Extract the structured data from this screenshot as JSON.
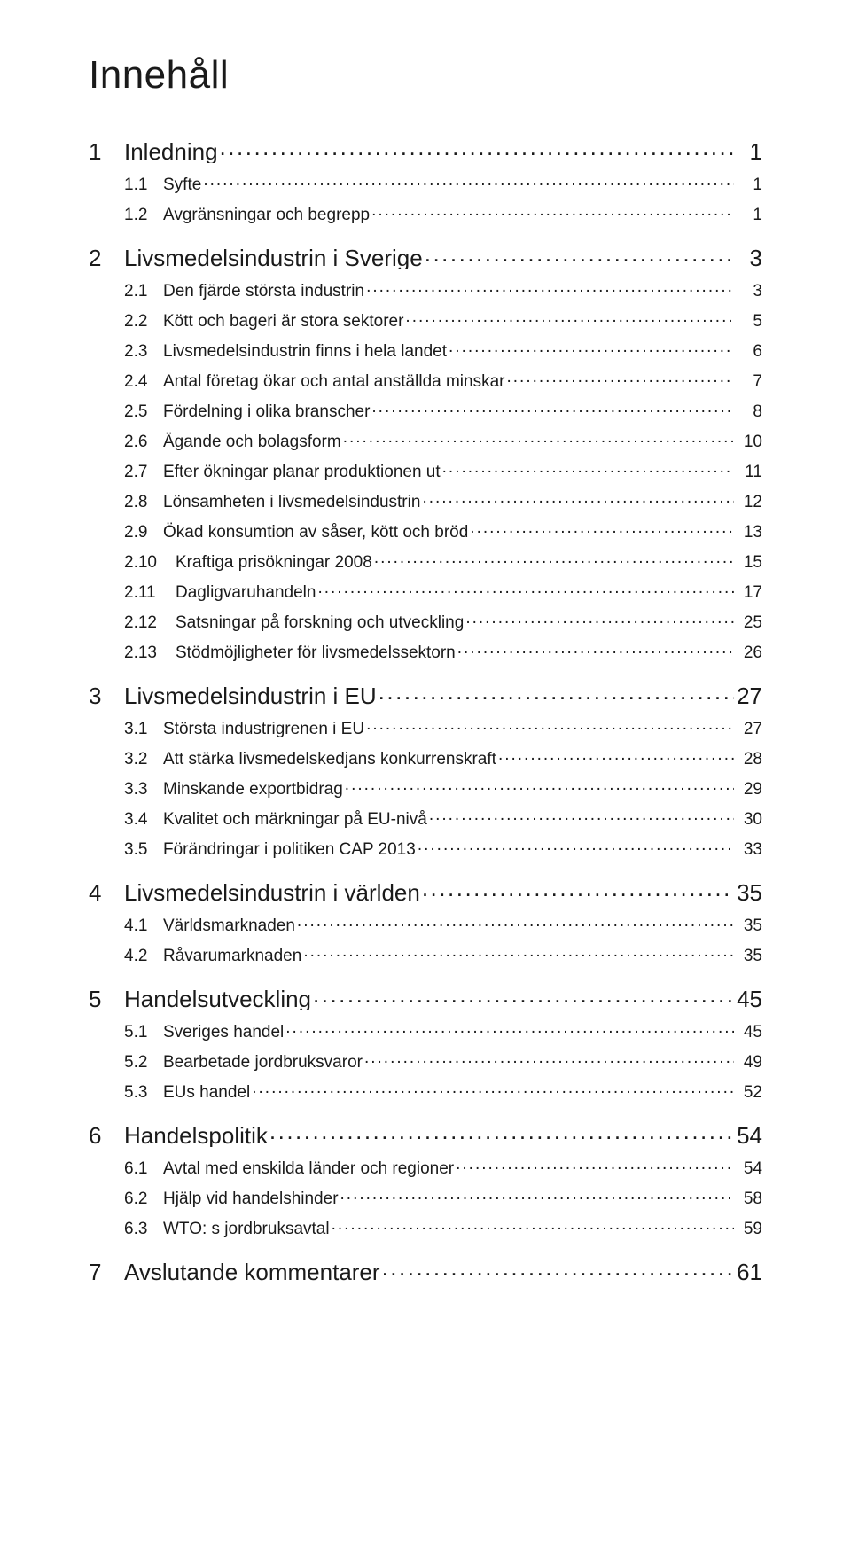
{
  "title": "Innehåll",
  "text_color": "#1a1a1a",
  "background_color": "#ffffff",
  "title_fontsize": 44,
  "lvl1_fontsize": 26,
  "lvl2_fontsize": 19,
  "toc": [
    {
      "level": 1,
      "num": "1",
      "label": "Inledning",
      "page": "1"
    },
    {
      "level": 2,
      "num": "1.1",
      "label": "Syfte",
      "page": "1"
    },
    {
      "level": 2,
      "num": "1.2",
      "label": "Avgränsningar och begrepp",
      "page": "1"
    },
    {
      "level": 1,
      "num": "2",
      "label": "Livsmedelsindustrin i Sverige",
      "page": "3"
    },
    {
      "level": 2,
      "num": "2.1",
      "label": "Den fjärde största industrin",
      "page": "3"
    },
    {
      "level": 2,
      "num": "2.2",
      "label": "Kött och bageri är stora sektorer",
      "page": "5"
    },
    {
      "level": 2,
      "num": "2.3",
      "label": "Livsmedelsindustrin finns i hela landet",
      "page": "6"
    },
    {
      "level": 2,
      "num": "2.4",
      "label": "Antal företag ökar och antal anställda minskar",
      "page": "7"
    },
    {
      "level": 2,
      "num": "2.5",
      "label": "Fördelning i olika branscher",
      "page": "8"
    },
    {
      "level": 2,
      "num": "2.6",
      "label": "Ägande och bolagsform",
      "page": "10"
    },
    {
      "level": 2,
      "num": "2.7",
      "label": "Efter ökningar planar produktionen ut",
      "page": "11"
    },
    {
      "level": 2,
      "num": "2.8",
      "label": "Lönsamheten i livsmedelsindustrin",
      "page": "12"
    },
    {
      "level": 2,
      "num": "2.9",
      "label": "Ökad konsumtion av såser, kött och bröd",
      "page": "13"
    },
    {
      "level": 2,
      "num": "2.10",
      "label": "Kraftiga prisökningar 2008",
      "page": "15",
      "wide": true
    },
    {
      "level": 2,
      "num": "2.11",
      "label": "Dagligvaruhandeln",
      "page": "17",
      "wide": true
    },
    {
      "level": 2,
      "num": "2.12",
      "label": "Satsningar på forskning och utveckling",
      "page": "25",
      "wide": true
    },
    {
      "level": 2,
      "num": "2.13",
      "label": "Stödmöjligheter för livsmedelssektorn",
      "page": "26",
      "wide": true
    },
    {
      "level": 1,
      "num": "3",
      "label": "Livsmedelsindustrin i EU",
      "page": "27"
    },
    {
      "level": 2,
      "num": "3.1",
      "label": "Största industrigrenen i EU",
      "page": "27"
    },
    {
      "level": 2,
      "num": "3.2",
      "label": "Att stärka livsmedelskedjans konkurrenskraft",
      "page": "28"
    },
    {
      "level": 2,
      "num": "3.3",
      "label": "Minskande exportbidrag",
      "page": "29"
    },
    {
      "level": 2,
      "num": "3.4",
      "label": "Kvalitet och märkningar på EU-nivå",
      "page": "30"
    },
    {
      "level": 2,
      "num": "3.5",
      "label": "Förändringar i politiken CAP 2013",
      "page": "33"
    },
    {
      "level": 1,
      "num": "4",
      "label": "Livsmedelsindustrin i världen",
      "page": "35"
    },
    {
      "level": 2,
      "num": "4.1",
      "label": "Världsmarknaden",
      "page": "35"
    },
    {
      "level": 2,
      "num": "4.2",
      "label": "Råvarumarknaden",
      "page": "35"
    },
    {
      "level": 1,
      "num": "5",
      "label": "Handelsutveckling",
      "page": "45"
    },
    {
      "level": 2,
      "num": "5.1",
      "label": "Sveriges handel",
      "page": "45"
    },
    {
      "level": 2,
      "num": "5.2",
      "label": "Bearbetade jordbruksvaror",
      "page": "49"
    },
    {
      "level": 2,
      "num": "5.3",
      "label": "EUs handel",
      "page": "52"
    },
    {
      "level": 1,
      "num": "6",
      "label": "Handelspolitik",
      "page": "54"
    },
    {
      "level": 2,
      "num": "6.1",
      "label": "Avtal med enskilda länder och regioner",
      "page": "54"
    },
    {
      "level": 2,
      "num": "6.2",
      "label": "Hjälp vid handelshinder",
      "page": "58"
    },
    {
      "level": 2,
      "num": "6.3",
      "label": "WTO: s jordbruksavtal",
      "page": "59"
    },
    {
      "level": 1,
      "num": "7",
      "label": "Avslutande kommentarer",
      "page": "61"
    }
  ]
}
